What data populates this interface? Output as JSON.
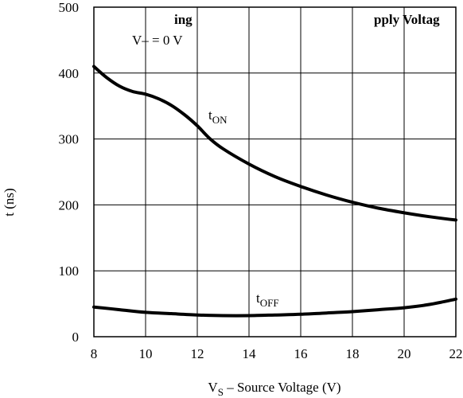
{
  "chart_data": {
    "type": "line",
    "title": "ing",
    "title_right": "pply Voltag",
    "xlabel": "V",
    "xlabel_sub": "S",
    "xlabel_rest": " – Source Voltage (V)",
    "ylabel": "t  (ns)",
    "xlim": [
      8,
      22
    ],
    "ylim": [
      0,
      500
    ],
    "x_ticks": [
      8,
      10,
      12,
      14,
      16,
      18,
      20,
      22
    ],
    "y_ticks": [
      0,
      100,
      200,
      300,
      400,
      500
    ],
    "grid": true,
    "annotation": "V– = 0 V",
    "series": [
      {
        "name": "t",
        "name_sub": "ON",
        "x": [
          8.0,
          8.5,
          9.0,
          9.5,
          10.0,
          10.5,
          11.0,
          11.5,
          12.0,
          12.5,
          13.0,
          14.0,
          15.0,
          16.0,
          17.0,
          18.0,
          19.0,
          20.0,
          21.0,
          22.0
        ],
        "values": [
          410,
          393,
          380,
          372,
          368,
          361,
          351,
          337,
          320,
          300,
          285,
          262,
          243,
          228,
          215,
          204,
          195,
          188,
          182,
          177
        ]
      },
      {
        "name": "t",
        "name_sub": "OFF",
        "x": [
          8.0,
          9.0,
          10.0,
          11.0,
          12.0,
          13.0,
          14.0,
          15.0,
          16.0,
          17.0,
          18.0,
          19.0,
          20.0,
          21.0,
          22.0
        ],
        "values": [
          45,
          41,
          37,
          35,
          33,
          32,
          32,
          33,
          34,
          36,
          38,
          41,
          44,
          49,
          57
        ]
      }
    ]
  }
}
